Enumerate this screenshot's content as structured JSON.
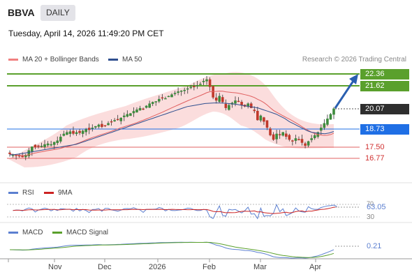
{
  "header": {
    "ticker": "BBVA",
    "timeframe": "DAILY",
    "datetime": "Tuesday, April 14, 2026 11:49:20 PM CET"
  },
  "legend": {
    "ma20": "MA 20 + Bollinger Bands",
    "ma50": "MA 50",
    "credit": "Research © 2026 Trading Central"
  },
  "levels": {
    "r2": "22.36",
    "r1": "21.62",
    "last": "20.07",
    "pivot": "18.73",
    "s1": "17.50",
    "s2": "16.77"
  },
  "rsi": {
    "label": "RSI",
    "ma_label": "9MA",
    "value": "63.05",
    "ref_top": "70",
    "ref_bottom": "30"
  },
  "macd": {
    "label": "MACD",
    "signal_label": "MACD Signal",
    "value": "0.21"
  },
  "x_axis": [
    "Nov",
    "Dec",
    "2026",
    "Feb",
    "Mar",
    "Apr"
  ],
  "colors": {
    "support_green": "#5aa02c",
    "pivot_blue": "#1f6fe5",
    "resistance_red": "#e06060",
    "ma20": "#f08080",
    "ma50": "#2f4f8f",
    "candle_up": "#3d8b3d",
    "candle_down": "#c0392b",
    "last_price_bg": "#2e2e2e",
    "rsi_line": "#5b7fd0",
    "rsi_ma": "#cc2222",
    "macd_line": "#5b7fd0",
    "macd_signal": "#5aa02c"
  },
  "chart_data": {
    "type": "candlestick",
    "title": "BBVA",
    "ylim": [
      16.2,
      22.9
    ],
    "close": [
      17.05,
      17.0,
      16.95,
      16.9,
      16.85,
      17.0,
      17.3,
      17.55,
      17.5,
      17.55,
      17.6,
      17.7,
      17.75,
      17.7,
      17.85,
      17.95,
      18.2,
      18.4,
      18.5,
      18.55,
      18.4,
      18.5,
      18.45,
      18.6,
      18.7,
      18.65,
      18.8,
      18.9,
      19.0,
      18.85,
      18.95,
      19.1,
      19.2,
      19.3,
      19.35,
      19.45,
      19.6,
      19.7,
      19.75,
      19.9,
      20.0,
      20.1,
      20.05,
      20.25,
      20.4,
      20.5,
      20.55,
      20.7,
      20.8,
      20.75,
      20.9,
      21.0,
      21.1,
      21.2,
      21.25,
      21.3,
      21.4,
      21.5,
      21.55,
      21.6,
      21.7,
      21.9,
      22.0,
      21.5,
      20.8,
      20.6,
      20.9,
      20.5,
      20.1,
      20.3,
      20.45,
      20.6,
      20.55,
      20.3,
      20.2,
      20.4,
      20.1,
      19.9,
      19.3,
      19.6,
      19.2,
      18.8,
      18.3,
      18.0,
      18.4,
      18.3,
      18.5,
      18.2,
      18.0,
      17.9,
      18.1,
      18.0,
      17.8,
      17.6,
      17.9,
      18.1,
      18.3,
      18.5,
      18.8,
      19.1,
      19.4,
      19.7,
      20.07
    ],
    "ma50": [
      17.0,
      17.02,
      17.05,
      17.1,
      17.15,
      17.2,
      17.25,
      17.3,
      17.35,
      17.4,
      17.45,
      17.5,
      17.55,
      17.6,
      17.65,
      17.7,
      17.8,
      17.9,
      18.0,
      18.1,
      18.2,
      18.3,
      18.4,
      18.5,
      18.6,
      18.7,
      18.8,
      18.9,
      19.0,
      19.1,
      19.2,
      19.3,
      19.4,
      19.5,
      19.6,
      19.7,
      19.8,
      19.9,
      20.0,
      20.1,
      20.2,
      20.25,
      20.3,
      20.35,
      20.4,
      20.42,
      20.44,
      20.44,
      20.43,
      20.41,
      20.38,
      20.35,
      20.3,
      20.25,
      20.2,
      20.15,
      20.1,
      20.0,
      19.9,
      19.8,
      19.7,
      19.55,
      19.4,
      19.2,
      19.05,
      18.9,
      18.75,
      18.6,
      18.5,
      18.45,
      18.42,
      18.4,
      18.45,
      18.55
    ],
    "levels": {
      "22.36": "resistance",
      "21.62": "resistance",
      "18.73": "pivot",
      "17.50": "support",
      "16.77": "support"
    },
    "rsi_value": 63.05,
    "macd_value": 0.21
  }
}
